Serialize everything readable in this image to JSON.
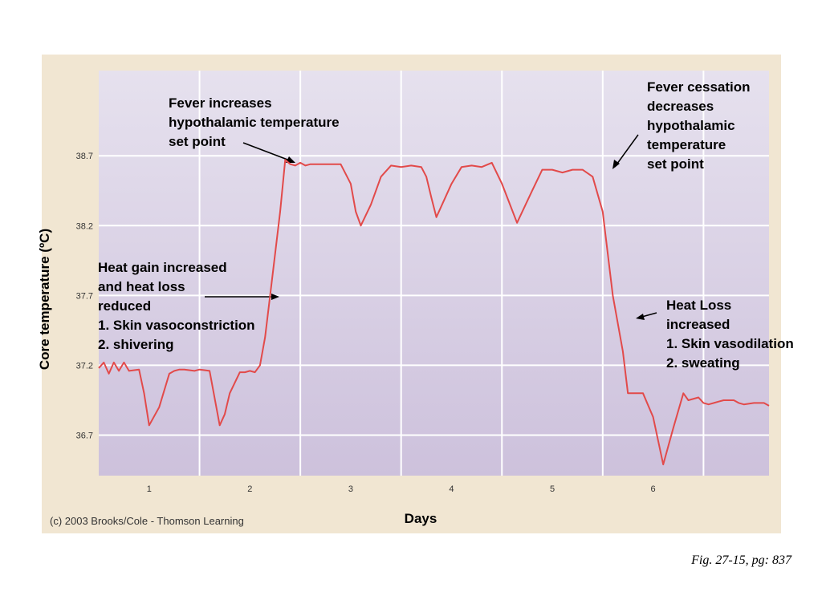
{
  "chart_data": {
    "type": "line",
    "xlabel": "Days",
    "ylabel": "Core temperature (ºC)",
    "x_ticks": [
      "1",
      "2",
      "3",
      "4",
      "5",
      "6"
    ],
    "y_ticks": [
      "38.7",
      "38.2",
      "37.7",
      "37.2",
      "36.7"
    ],
    "xlim": [
      0.5,
      7.15
    ],
    "ylim": [
      36.41,
      39.31
    ],
    "grid": true,
    "line_color": "#e24a4a",
    "series": [
      {
        "x": [
          0.5,
          0.55,
          0.6,
          0.65,
          0.7,
          0.75,
          0.8,
          0.9,
          0.95,
          1.0,
          1.1,
          1.2,
          1.25,
          1.3,
          1.35,
          1.45,
          1.5,
          1.6,
          1.7,
          1.75,
          1.8,
          1.9,
          1.95,
          2.0,
          2.05,
          2.1,
          2.15,
          2.2,
          2.3,
          2.35,
          2.4,
          2.45,
          2.5,
          2.55,
          2.6,
          2.7,
          2.9,
          3.0,
          3.05,
          3.1,
          3.2,
          3.3,
          3.4,
          3.5,
          3.6,
          3.7,
          3.75,
          3.8,
          3.85,
          4.0,
          4.1,
          4.2,
          4.3,
          4.4,
          4.5,
          4.65,
          4.8,
          4.9,
          5.0,
          5.1,
          5.2,
          5.3,
          5.4,
          5.5,
          5.55,
          5.6,
          5.7,
          5.75,
          5.8,
          5.9,
          6.0,
          6.1,
          6.2,
          6.3,
          6.35,
          6.45,
          6.5,
          6.55,
          6.65,
          6.7,
          6.8,
          6.85,
          6.9,
          7.0,
          7.05,
          7.1,
          7.15
        ],
        "y": [
          37.18,
          37.22,
          37.14,
          37.22,
          37.16,
          37.22,
          37.16,
          37.17,
          37.0,
          36.77,
          36.9,
          37.14,
          37.16,
          37.17,
          37.17,
          37.16,
          37.17,
          37.16,
          36.77,
          36.85,
          37.0,
          37.15,
          37.15,
          37.16,
          37.15,
          37.2,
          37.4,
          37.7,
          38.3,
          38.67,
          38.64,
          38.63,
          38.65,
          38.63,
          38.64,
          38.64,
          38.64,
          38.5,
          38.3,
          38.2,
          38.35,
          38.55,
          38.63,
          38.62,
          38.63,
          38.62,
          38.55,
          38.4,
          38.26,
          38.5,
          38.62,
          38.63,
          38.62,
          38.65,
          38.5,
          38.22,
          38.45,
          38.6,
          38.6,
          38.58,
          38.6,
          38.6,
          38.55,
          38.3,
          38.0,
          37.7,
          37.3,
          37.0,
          37.0,
          37.0,
          36.83,
          36.49,
          36.75,
          37.0,
          36.95,
          36.97,
          36.93,
          36.92,
          36.94,
          36.95,
          36.95,
          36.93,
          36.92,
          36.93,
          36.93,
          36.93,
          36.91
        ]
      }
    ]
  },
  "annotations": {
    "fever_increases": [
      "Fever increases",
      "hypothalamic temperature",
      "set point"
    ],
    "fever_cessation": [
      "Fever cessation",
      "decreases",
      "hypothalamic",
      "temperature",
      "set point"
    ],
    "heat_gain": [
      "Heat gain increased",
      "and heat loss",
      "reduced",
      "1. Skin vasoconstriction",
      "2. shivering"
    ],
    "heat_loss": [
      "Heat Loss",
      "increased",
      "1. Skin vasodilation",
      "2. sweating"
    ]
  },
  "copyright": "(c) 2003 Brooks/Cole - Thomson Learning",
  "caption": "Fig. 27-15, pg: 837"
}
